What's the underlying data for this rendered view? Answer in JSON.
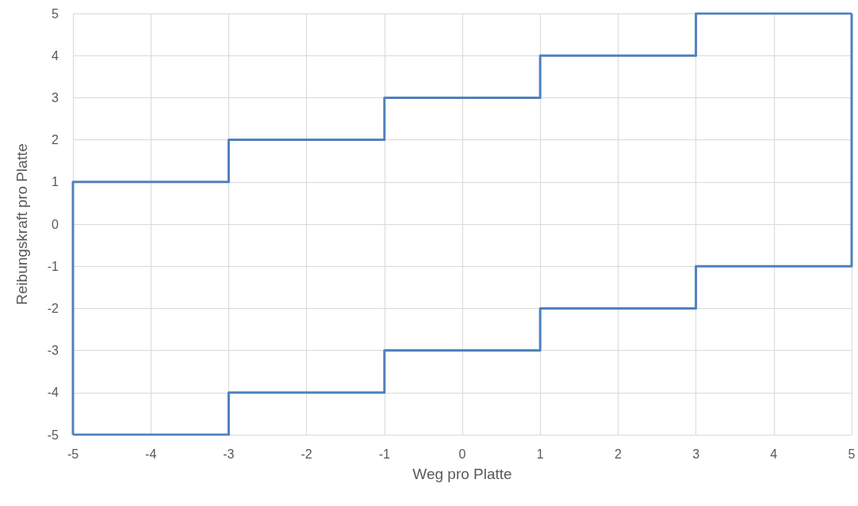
{
  "chart_data": {
    "type": "line",
    "xlabel": "Weg pro Platte",
    "ylabel": "Reibungskraft pro Platte",
    "series": [
      {
        "color": "#4f81bd",
        "x": [
          -5,
          -5,
          -3,
          -3,
          -1,
          -1,
          1,
          1,
          3,
          3,
          5
        ],
        "values": [
          -5,
          1,
          1,
          2,
          2,
          3,
          3,
          4,
          4,
          5,
          5
        ]
      },
      {
        "color": "#4f81bd",
        "x": [
          5,
          5,
          3,
          3,
          1,
          1,
          -1,
          -1,
          -3,
          -3,
          -5
        ],
        "values": [
          5,
          -1,
          -1,
          -2,
          -2,
          -3,
          -3,
          -4,
          -4,
          -5,
          -5
        ]
      }
    ],
    "xlim": [
      -5,
      5
    ],
    "xticks": [
      -5,
      -4,
      -3,
      -2,
      -1,
      0,
      1,
      2,
      3,
      4,
      5
    ],
    "ylim": [
      -5,
      5
    ],
    "yticks": [
      -5,
      -4,
      -3,
      -2,
      -1,
      0,
      1,
      2,
      3,
      4,
      5
    ],
    "grid": true,
    "marker": "none"
  }
}
